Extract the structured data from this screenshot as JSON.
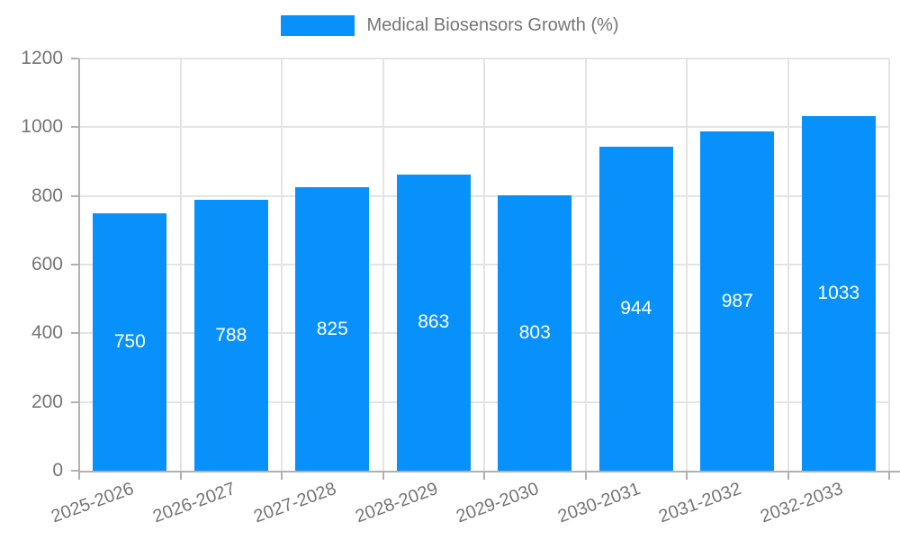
{
  "legend": {
    "label": "Medical Biosensors Growth (%)"
  },
  "chart_data": {
    "type": "bar",
    "title": "",
    "xlabel": "",
    "ylabel": "",
    "categories": [
      "2025-2026",
      "2026-2027",
      "2027-2028",
      "2028-2029",
      "2029-2030",
      "2030-2031",
      "2031-2032",
      "2032-2033"
    ],
    "series": [
      {
        "name": "Medical Biosensors Growth (%)",
        "values": [
          750,
          788,
          825,
          863,
          803,
          944,
          987,
          1033
        ]
      }
    ],
    "ylim": [
      0,
      1200
    ],
    "yticks": [
      0,
      200,
      400,
      600,
      800,
      1000,
      1200
    ],
    "grid": true,
    "legend_position": "top-center",
    "bar_color": "#0991fb",
    "value_label_color": "#ffffff",
    "axis_label_color": "#757575",
    "grid_color": "#e4e4e4",
    "axis_line_color": "#b0b0b0",
    "background_color": "#ffffff"
  }
}
